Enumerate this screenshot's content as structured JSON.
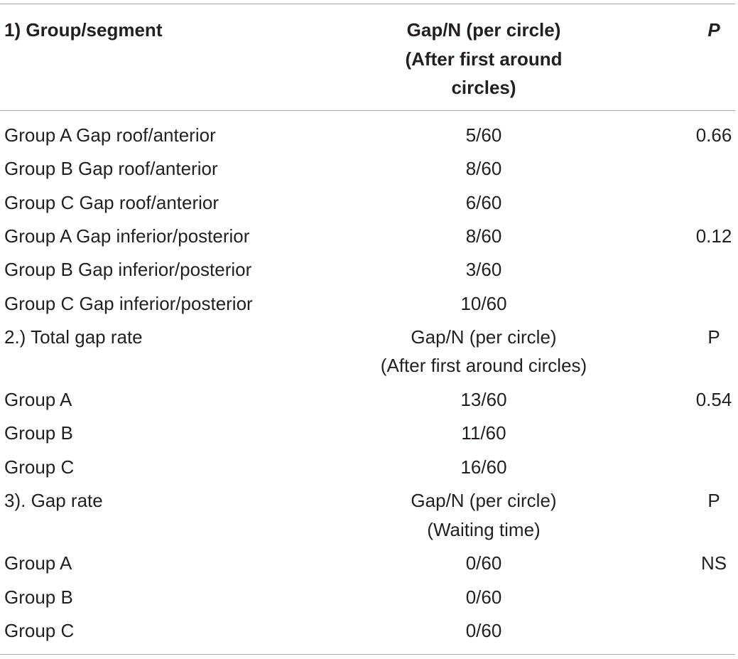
{
  "table": {
    "header": [
      "1) Group/segment",
      [
        "Gap/N (per circle)",
        "(After first around",
        "circles)"
      ],
      "P"
    ],
    "rows": [
      [
        "Group A Gap roof/anterior",
        "5/60",
        "0.66"
      ],
      [
        "Group B Gap roof/anterior",
        "8/60",
        null
      ],
      [
        "Group C Gap roof/anterior",
        "6/60",
        null
      ],
      [
        "Group A Gap inferior/posterior",
        "8/60",
        "0.12"
      ],
      [
        "Group B Gap inferior/posterior",
        "3/60",
        null
      ],
      [
        "Group C Gap inferior/posterior",
        "10/60",
        null
      ],
      [
        "2.) Total gap rate",
        [
          "Gap/N (per circle)",
          "(After first around circles)"
        ],
        "P"
      ],
      [
        "Group A",
        "13/60",
        "0.54"
      ],
      [
        "Group B",
        "11/60",
        null
      ],
      [
        "Group C",
        "16/60",
        null
      ],
      [
        "3). Gap rate",
        [
          "Gap/N (per circle)",
          "(Waiting time)"
        ],
        "P"
      ],
      [
        "Group A",
        "0/60",
        "NS"
      ],
      [
        "Group B",
        "0/60",
        null
      ],
      [
        "Group C",
        "0/60",
        null
      ]
    ]
  }
}
